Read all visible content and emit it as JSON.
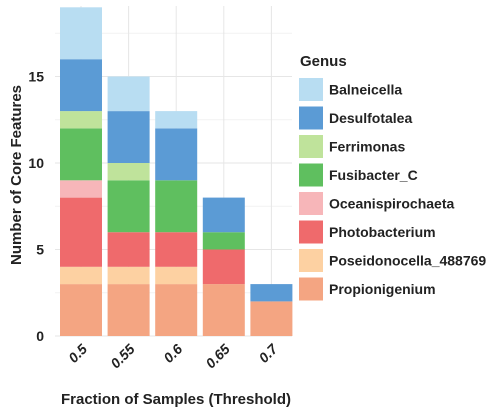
{
  "chart_data": {
    "type": "bar",
    "stacked": true,
    "xlabel": "Fraction of Samples (Threshold)",
    "ylabel": "Number of Core Features",
    "categories": [
      "0.5",
      "0.55",
      "0.6",
      "0.65",
      "0.7"
    ],
    "ylim": [
      0,
      19
    ],
    "yticks": [
      0,
      5,
      10,
      15
    ],
    "grid": true,
    "legend": {
      "title": "Genus",
      "placement": "right"
    },
    "series": [
      {
        "name": "Propionigenium",
        "color": "#F4A582",
        "values": [
          3,
          3,
          3,
          3,
          2
        ]
      },
      {
        "name": "Poseidonocella_488769",
        "color": "#FDD1A2",
        "values": [
          1,
          1,
          1,
          0,
          0
        ]
      },
      {
        "name": "Photobacterium",
        "color": "#EF6A6C",
        "values": [
          4,
          2,
          2,
          2,
          0
        ]
      },
      {
        "name": "Oceanispirochaeta",
        "color": "#F7B6B9",
        "values": [
          1,
          0,
          0,
          0,
          0
        ]
      },
      {
        "name": "Fusibacter_C",
        "color": "#5FBF5F",
        "values": [
          3,
          3,
          3,
          1,
          0
        ]
      },
      {
        "name": "Ferrimonas",
        "color": "#BFE39B",
        "values": [
          1,
          1,
          0,
          0,
          0
        ]
      },
      {
        "name": "Desulfotalea",
        "color": "#5B9BD5",
        "values": [
          3,
          3,
          3,
          2,
          1
        ]
      },
      {
        "name": "Balneicella",
        "color": "#B8DDF2",
        "values": [
          3,
          2,
          1,
          0,
          0
        ]
      }
    ]
  }
}
